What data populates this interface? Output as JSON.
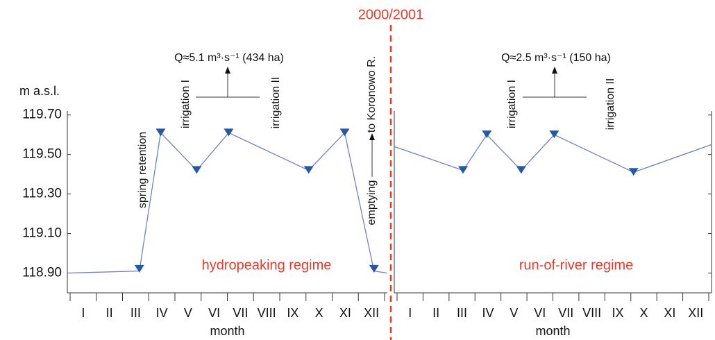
{
  "divider": {
    "label": "2000/2001",
    "color": "#e8392b"
  },
  "chart_data": [
    {
      "type": "line",
      "ylabel": "m  a.s.l.",
      "xlabel": "month",
      "categories": [
        "I",
        "II",
        "III",
        "IV",
        "V",
        "VI",
        "VII",
        "VIII",
        "IX",
        "X",
        "XI",
        "XII"
      ],
      "xlim": [
        0,
        12
      ],
      "ylim": [
        118.8,
        119.72
      ],
      "yticks": [
        {
          "value": 118.9,
          "label": "118.90"
        },
        {
          "value": 119.1,
          "label": "119.10"
        },
        {
          "value": 119.3,
          "label": "119.30"
        },
        {
          "value": 119.5,
          "label": "119.50"
        },
        {
          "value": 119.7,
          "label": "119.70"
        }
      ],
      "ytick_labels": true,
      "x": [
        0,
        2.7,
        3.5,
        4.85,
        6.05,
        9.05,
        10.4,
        11.5,
        12
      ],
      "series": [
        {
          "color": "#6f7fcf",
          "values": [
            118.9,
            118.91,
            119.61,
            119.42,
            119.61,
            119.42,
            119.61,
            118.91,
            118.9
          ]
        }
      ],
      "markers": {
        "color": "#2459a8",
        "x": [
          2.7,
          3.5,
          4.85,
          6.05,
          9.05,
          10.4,
          11.5
        ],
        "values": [
          118.92,
          119.61,
          119.42,
          119.61,
          119.42,
          119.61,
          118.92
        ]
      },
      "regime": "hydropeaking regime",
      "annotations": {
        "spring": "spring retention",
        "irrigation_1": "irrigation I",
        "irrigation_2": "irrigation II",
        "discharge": "Q≈5.1 m³·s⁻¹ (434 ha)",
        "emptying": "emptying",
        "destination": "to Koronowo R."
      }
    },
    {
      "type": "line",
      "xlabel": "month",
      "categories": [
        "I",
        "II",
        "III",
        "IV",
        "V",
        "VI",
        "VII",
        "VIII",
        "IX",
        "X",
        "XI",
        "XII"
      ],
      "xlim": [
        0,
        12
      ],
      "ylim": [
        118.8,
        119.72
      ],
      "yticks": [
        118.9,
        119.1,
        119.3,
        119.5,
        119.7
      ],
      "ytick_labels": false,
      "x": [
        0,
        2.6,
        3.5,
        4.8,
        6.05,
        9.05,
        12
      ],
      "series": [
        {
          "color": "#6f7fcf",
          "values": [
            119.54,
            119.42,
            119.6,
            119.42,
            119.6,
            119.41,
            119.55
          ]
        }
      ],
      "markers": {
        "color": "#2459a8",
        "x": [
          2.6,
          3.5,
          4.8,
          6.05,
          9.05
        ],
        "values": [
          119.42,
          119.6,
          119.42,
          119.6,
          119.41
        ]
      },
      "regime": "run-of-river regime",
      "annotations": {
        "irrigation_1": "irrigation I",
        "irrigation_2": "irrigation II",
        "discharge": "Q≈2.5 m³·s⁻¹ (150 ha)"
      }
    }
  ]
}
